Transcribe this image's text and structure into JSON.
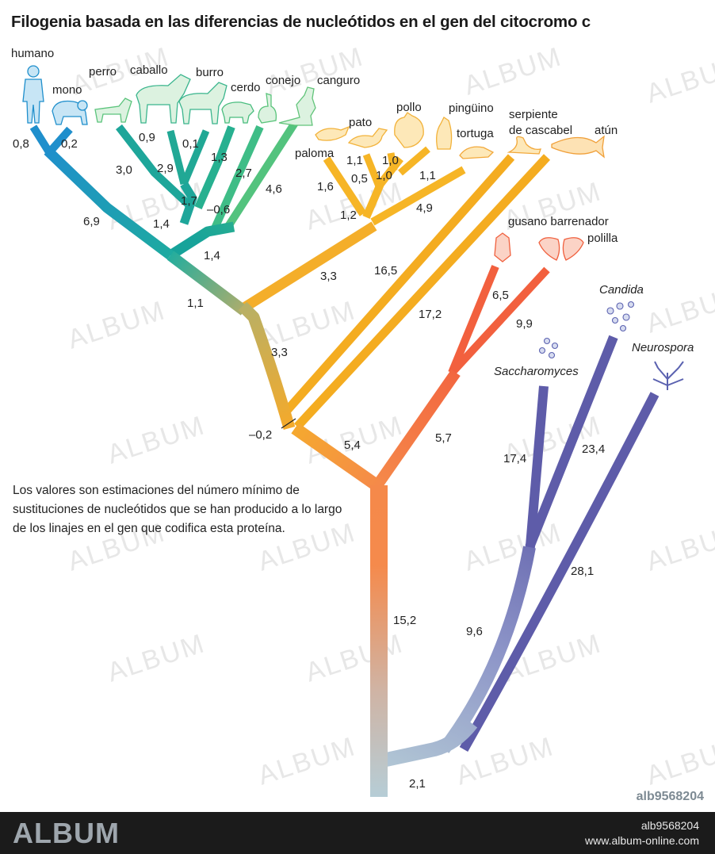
{
  "title": "Filogenia basada en las diferencias de nucleótidos en el gen del citocromo c",
  "note": "Los valores son estimaciones del número mínimo de sustituciones de nucleótidos que se han producido a lo largo de los linajes en el gen que codifica esta proteína.",
  "taxa": {
    "humano": "humano",
    "mono": "mono",
    "perro": "perro",
    "caballo": "caballo",
    "burro": "burro",
    "cerdo": "cerdo",
    "conejo": "conejo",
    "canguro": "canguro",
    "paloma": "paloma",
    "pato": "pato",
    "pollo": "pollo",
    "pinguino": "pingüino",
    "tortuga": "tortuga",
    "serpiente_1": "serpiente",
    "serpiente_2": "de cascabel",
    "atun": "atún",
    "gusano": "gusano barrenador",
    "polilla": "polilla",
    "candida": "Candida",
    "neurospora": "Neurospora",
    "saccharomyces": "Saccharomyces"
  },
  "branch_values": {
    "humano": "0,8",
    "mono": "0,2",
    "primates": "6,9",
    "perro": "3,0",
    "caballo": "0,9",
    "burro": "0,1",
    "perro_caballo": "2,9",
    "cerdo": "1,3",
    "ungulados": "1,7",
    "conejo": "2,7",
    "n_06": "–0,6",
    "n_14a": "1,4",
    "canguro": "4,6",
    "mamiferos": "1,4",
    "amniotas_tronco": "1,1",
    "paloma": "1,6",
    "pato": "1,1",
    "pollo": "1,0",
    "pato_pollo": "0,5",
    "n_10b": "1,0",
    "pinguino": "1,1",
    "aves": "1,2",
    "tortuga": "4,9",
    "reptiles": "3,3",
    "serpiente": "16,5",
    "atun": "17,2",
    "vertebrados": "3,3",
    "n_02": "–0,2",
    "animales_tronco": "5,4",
    "gusano": "6,5",
    "polilla": "9,9",
    "insectos": "5,7",
    "saccharomyces": "17,4",
    "candida": "23,4",
    "levaduras": "9,6",
    "neurospora": "28,1",
    "animales": "15,2",
    "hongos_raiz": "2,1"
  },
  "colors": {
    "mammals_blue": "#1f93c9",
    "mammals_teal": "#1eaa9c",
    "mammals_green": "#4cc27a",
    "birds_orange": "#f5b223",
    "reptile_orange": "#f3a81c",
    "insect_red": "#f26440",
    "trunk_orange": "#f58b4a",
    "root": "#b8ccd3",
    "fungi_purple": "#5c5aa8"
  },
  "watermark": "ALBUM",
  "image_code": "alb9568204",
  "footer": {
    "logo": "ALBUM",
    "id": "alb9568204",
    "url": "www.album-online.com"
  }
}
